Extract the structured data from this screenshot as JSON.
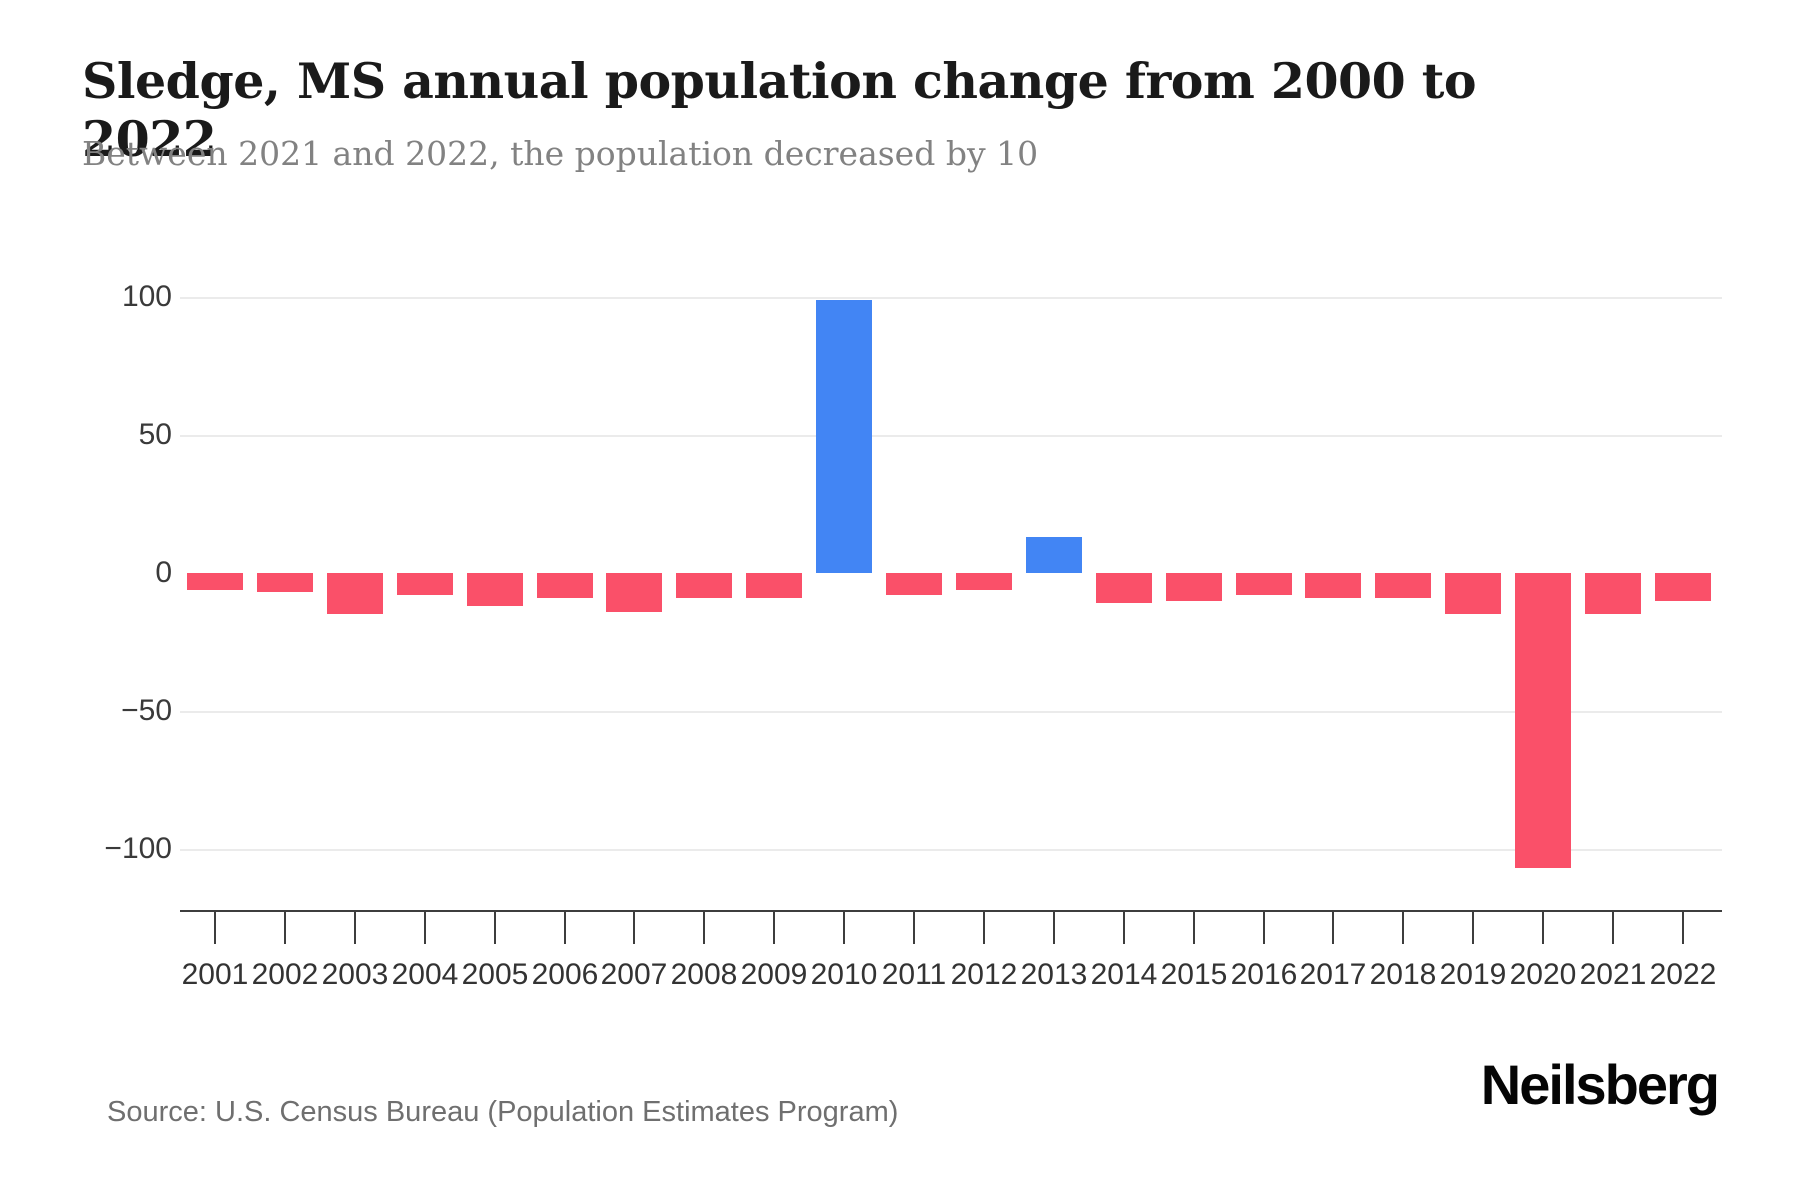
{
  "header": {
    "title": "Sledge, MS annual population change from 2000 to 2022",
    "subtitle": "Between 2021 and 2022, the population decreased by 10"
  },
  "footer": {
    "source": "Source: U.S. Census Bureau (Population Estimates Program)",
    "brand": "Neilsberg"
  },
  "colors": {
    "positive_bar": "#4285f4",
    "negative_bar": "#fa5069",
    "gridline": "#ebebeb",
    "axis": "#3d3d3d",
    "title_text": "#1a1a1a",
    "subtitle_text": "#828282",
    "tick_label_text": "#333333",
    "source_text": "#6f6f6f"
  },
  "chart_data": {
    "type": "bar",
    "title": "Sledge, MS annual population change from 2000 to 2022",
    "xlabel": "",
    "ylabel": "",
    "categories": [
      2001,
      2002,
      2003,
      2004,
      2005,
      2006,
      2007,
      2008,
      2009,
      2010,
      2011,
      2012,
      2013,
      2014,
      2015,
      2016,
      2017,
      2018,
      2019,
      2020,
      2021,
      2022
    ],
    "values": [
      -6,
      -7,
      -15,
      -8,
      -12,
      -9,
      -14,
      -9,
      -9,
      99,
      -8,
      -6,
      13,
      -11,
      -10,
      -8,
      -9,
      -9,
      -15,
      -107,
      -15,
      -10
    ],
    "y_ticks": [
      100,
      50,
      0,
      -50,
      -100
    ],
    "ylim": [
      -122,
      112
    ],
    "grid": "horizontal",
    "legend_position": "none",
    "positive_color": "#4285f4",
    "negative_color": "#fa5069"
  }
}
